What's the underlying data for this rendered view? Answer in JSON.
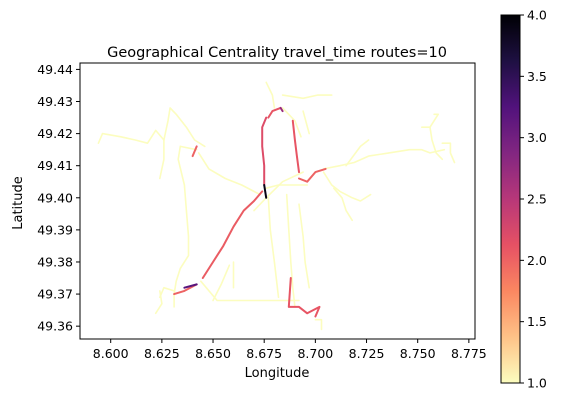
{
  "chart_data": {
    "type": "line",
    "title": "Geographical Centrality travel_time routes=10",
    "xlabel": "Longitude",
    "ylabel": "Latitude",
    "xlim": [
      8.585,
      8.778
    ],
    "ylim": [
      49.356,
      49.442
    ],
    "x_ticks": [
      8.6,
      8.625,
      8.65,
      8.675,
      8.7,
      8.725,
      8.75,
      8.775
    ],
    "x_tick_labels": [
      "8.600",
      "8.625",
      "8.650",
      "8.675",
      "8.700",
      "8.725",
      "8.750",
      "8.775"
    ],
    "y_ticks": [
      49.36,
      49.37,
      49.38,
      49.39,
      49.4,
      49.41,
      49.42,
      49.43,
      49.44
    ],
    "y_tick_labels": [
      "49.36",
      "49.37",
      "49.38",
      "49.39",
      "49.40",
      "49.41",
      "49.42",
      "49.43",
      "49.44"
    ],
    "grid": false,
    "colorbar": {
      "min": 1.0,
      "max": 4.0,
      "ticks": [
        1.0,
        1.5,
        2.0,
        2.5,
        3.0,
        3.5,
        4.0
      ],
      "tick_labels": [
        "1.0",
        "1.5",
        "2.0",
        "2.5",
        "3.0",
        "3.5",
        "4.0"
      ],
      "colormap": "magma_r",
      "stops": [
        "#fcfdbf",
        "#fec287",
        "#fb8761",
        "#e65164",
        "#b73779",
        "#822681",
        "#51127c",
        "#1e1042",
        "#000004"
      ]
    },
    "series": [
      {
        "value": 1,
        "points": [
          [
            8.594,
            49.417
          ],
          [
            8.596,
            49.42
          ],
          [
            8.605,
            49.419
          ],
          [
            8.612,
            49.418
          ],
          [
            8.618,
            49.417
          ],
          [
            8.622,
            49.421
          ],
          [
            8.626,
            49.418
          ]
        ]
      },
      {
        "value": 1,
        "points": [
          [
            8.626,
            49.418
          ],
          [
            8.628,
            49.424
          ],
          [
            8.629,
            49.428
          ],
          [
            8.632,
            49.426
          ],
          [
            8.637,
            49.422
          ],
          [
            8.641,
            49.418
          ],
          [
            8.646,
            49.416
          ]
        ]
      },
      {
        "value": 1,
        "points": [
          [
            8.626,
            49.418
          ],
          [
            8.626,
            49.412
          ],
          [
            8.624,
            49.406
          ]
        ]
      },
      {
        "value": 1,
        "points": [
          [
            8.634,
            49.416
          ],
          [
            8.633,
            49.412
          ],
          [
            8.636,
            49.404
          ],
          [
            8.637,
            49.396
          ],
          [
            8.638,
            49.388
          ],
          [
            8.638,
            49.382
          ],
          [
            8.634,
            49.378
          ],
          [
            8.632,
            49.374
          ],
          [
            8.631,
            49.37
          ],
          [
            8.631,
            49.366
          ]
        ]
      },
      {
        "value": 1,
        "points": [
          [
            8.634,
            49.416
          ],
          [
            8.642,
            49.415
          ]
        ]
      },
      {
        "value": 1,
        "points": [
          [
            8.624,
            49.369
          ],
          [
            8.626,
            49.372
          ],
          [
            8.631,
            49.371
          ]
        ]
      },
      {
        "value": 1,
        "points": [
          [
            8.622,
            49.364
          ],
          [
            8.625,
            49.367
          ],
          [
            8.624,
            49.371
          ]
        ]
      },
      {
        "value": 1,
        "points": [
          [
            8.644,
            49.374
          ],
          [
            8.652,
            49.368
          ],
          [
            8.662,
            49.368
          ],
          [
            8.672,
            49.368
          ],
          [
            8.683,
            49.368
          ],
          [
            8.692,
            49.368
          ]
        ]
      },
      {
        "value": 1,
        "points": [
          [
            8.65,
            49.368
          ],
          [
            8.654,
            49.373
          ],
          [
            8.658,
            49.379
          ]
        ]
      },
      {
        "value": 1,
        "points": [
          [
            8.66,
            49.372
          ],
          [
            8.66,
            49.38
          ]
        ]
      },
      {
        "value": 1,
        "points": [
          [
            8.643,
            49.414
          ],
          [
            8.648,
            49.409
          ],
          [
            8.656,
            49.406
          ],
          [
            8.664,
            49.404
          ],
          [
            8.673,
            49.401
          ]
        ]
      },
      {
        "value": 1,
        "points": [
          [
            8.676,
            49.436
          ],
          [
            8.679,
            49.432
          ],
          [
            8.68,
            49.428
          ]
        ]
      },
      {
        "value": 1,
        "points": [
          [
            8.684,
            49.432
          ],
          [
            8.694,
            49.431
          ],
          [
            8.701,
            49.432
          ],
          [
            8.708,
            49.432
          ]
        ]
      },
      {
        "value": 1,
        "points": [
          [
            8.684,
            49.428
          ],
          [
            8.69,
            49.424
          ],
          [
            8.693,
            49.419
          ]
        ]
      },
      {
        "value": 1,
        "points": [
          [
            8.694,
            49.427
          ],
          [
            8.697,
            49.42
          ]
        ]
      },
      {
        "value": 1,
        "points": [
          [
            8.676,
            49.403
          ],
          [
            8.682,
            49.404
          ],
          [
            8.689,
            49.404
          ],
          [
            8.696,
            49.404
          ]
        ]
      },
      {
        "value": 1,
        "points": [
          [
            8.67,
            49.396
          ],
          [
            8.676,
            49.4
          ],
          [
            8.684,
            49.405
          ],
          [
            8.694,
            49.408
          ]
        ]
      },
      {
        "value": 1,
        "points": [
          [
            8.677,
            49.4
          ],
          [
            8.678,
            49.39
          ],
          [
            8.68,
            49.38
          ],
          [
            8.682,
            49.369
          ]
        ]
      },
      {
        "value": 1,
        "points": [
          [
            8.686,
            49.401
          ],
          [
            8.687,
            49.39
          ],
          [
            8.688,
            49.38
          ],
          [
            8.689,
            49.372
          ],
          [
            8.69,
            49.366
          ]
        ]
      },
      {
        "value": 1,
        "points": [
          [
            8.692,
            49.398
          ],
          [
            8.694,
            49.388
          ],
          [
            8.695,
            49.38
          ],
          [
            8.697,
            49.372
          ]
        ]
      },
      {
        "value": 1,
        "points": [
          [
            8.704,
            49.409
          ],
          [
            8.712,
            49.41
          ],
          [
            8.719,
            49.411
          ],
          [
            8.726,
            49.413
          ],
          [
            8.736,
            49.414
          ],
          [
            8.746,
            49.415
          ],
          [
            8.752,
            49.415
          ],
          [
            8.756,
            49.414
          ],
          [
            8.763,
            49.415
          ]
        ]
      },
      {
        "value": 1,
        "points": [
          [
            8.715,
            49.41
          ],
          [
            8.722,
            49.416
          ],
          [
            8.726,
            49.418
          ]
        ]
      },
      {
        "value": 1,
        "points": [
          [
            8.704,
            49.408
          ],
          [
            8.708,
            49.404
          ],
          [
            8.712,
            49.402
          ],
          [
            8.718,
            49.4
          ],
          [
            8.722,
            49.399
          ],
          [
            8.727,
            49.401
          ]
        ]
      },
      {
        "value": 1,
        "points": [
          [
            8.709,
            49.403
          ],
          [
            8.713,
            49.4
          ],
          [
            8.715,
            49.396
          ],
          [
            8.718,
            49.393
          ]
        ]
      },
      {
        "value": 1,
        "points": [
          [
            8.752,
            49.422
          ],
          [
            8.756,
            49.422
          ],
          [
            8.757,
            49.418
          ],
          [
            8.759,
            49.414
          ],
          [
            8.762,
            49.412
          ]
        ]
      },
      {
        "value": 1,
        "points": [
          [
            8.756,
            49.422
          ],
          [
            8.76,
            49.426
          ],
          [
            8.758,
            49.426
          ]
        ]
      },
      {
        "value": 1,
        "points": [
          [
            8.762,
            49.417
          ],
          [
            8.766,
            49.417
          ],
          [
            8.766,
            49.414
          ],
          [
            8.768,
            49.411
          ]
        ]
      },
      {
        "value": 1,
        "points": [
          [
            8.7,
            49.362
          ],
          [
            8.703,
            49.362
          ],
          [
            8.703,
            49.359
          ]
        ]
      },
      {
        "value": 2,
        "points": [
          [
            8.631,
            49.37
          ],
          [
            8.636,
            49.371
          ],
          [
            8.642,
            49.373
          ]
        ]
      },
      {
        "value": 2.05,
        "points": [
          [
            8.645,
            49.375
          ],
          [
            8.65,
            49.38
          ],
          [
            8.655,
            49.385
          ],
          [
            8.66,
            49.391
          ],
          [
            8.665,
            49.396
          ],
          [
            8.67,
            49.399
          ],
          [
            8.674,
            49.402
          ]
        ]
      },
      {
        "value": 2.2,
        "points": [
          [
            8.676,
            49.425
          ],
          [
            8.674,
            49.422
          ],
          [
            8.674,
            49.416
          ],
          [
            8.675,
            49.41
          ],
          [
            8.675,
            49.404
          ]
        ]
      },
      {
        "value": 3.9,
        "points": [
          [
            8.675,
            49.404
          ],
          [
            8.676,
            49.4
          ]
        ]
      },
      {
        "value": 2.1,
        "points": [
          [
            8.677,
            49.425
          ],
          [
            8.679,
            49.427
          ],
          [
            8.683,
            49.428
          ]
        ]
      },
      {
        "value": 2.7,
        "points": [
          [
            8.683,
            49.428
          ],
          [
            8.684,
            49.427
          ]
        ]
      },
      {
        "value": 2.1,
        "points": [
          [
            8.689,
            49.424
          ],
          [
            8.69,
            49.418
          ],
          [
            8.691,
            49.413
          ],
          [
            8.692,
            49.408
          ]
        ]
      },
      {
        "value": 2.0,
        "points": [
          [
            8.692,
            49.406
          ],
          [
            8.696,
            49.405
          ],
          [
            8.7,
            49.408
          ],
          [
            8.705,
            49.409
          ]
        ]
      },
      {
        "value": 2.1,
        "points": [
          [
            8.688,
            49.375
          ],
          [
            8.687,
            49.366
          ],
          [
            8.692,
            49.366
          ],
          [
            8.696,
            49.364
          ],
          [
            8.702,
            49.366
          ],
          [
            8.7,
            49.363
          ]
        ]
      },
      {
        "value": 2.0,
        "points": [
          [
            8.64,
            49.413
          ],
          [
            8.642,
            49.416
          ]
        ]
      },
      {
        "value": 3.2,
        "points": [
          [
            8.636,
            49.372
          ],
          [
            8.642,
            49.373
          ]
        ]
      }
    ]
  }
}
